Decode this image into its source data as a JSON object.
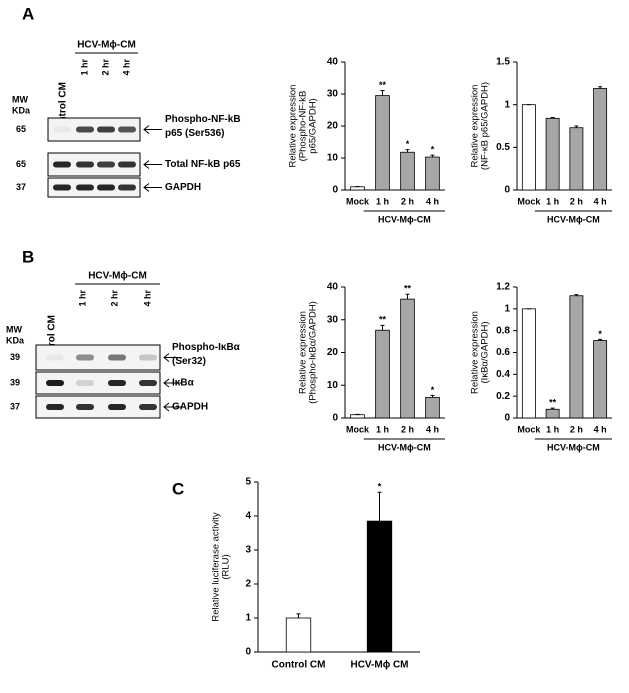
{
  "panel_labels": [
    "A",
    "B",
    "C"
  ],
  "blots": [
    {
      "lane_header": "Control CM",
      "group_label": "HCV-Mϕ-CM",
      "lanes": [
        "1 hr",
        "2 hr",
        "4 hr"
      ],
      "mw_header": [
        "MW",
        "KDa"
      ],
      "rows": [
        {
          "mw": "65",
          "label": [
            "Phospho-NF-kB",
            "p65 (Ser536)"
          ]
        },
        {
          "mw": "65",
          "label": [
            "Total NF-kB p65"
          ]
        },
        {
          "mw": "37",
          "label": [
            "GAPDH"
          ]
        }
      ]
    },
    {
      "lane_header": "Control CM",
      "group_label": "HCV-Mϕ-CM",
      "lanes": [
        "1 hr",
        "2 hr",
        "4 hr"
      ],
      "mw_header": [
        "MW",
        "KDa"
      ],
      "rows": [
        {
          "mw": "39",
          "label": [
            "Phospho-IκBα",
            "(Ser32)"
          ]
        },
        {
          "mw": "39",
          "label": [
            "IκBα"
          ]
        },
        {
          "mw": "37",
          "label": [
            "GAPDH"
          ]
        }
      ]
    }
  ],
  "chart_data": [
    {
      "type": "bar",
      "ylabel": [
        "Relative expression",
        "(Phospho-NF-kB",
        "p65/GAPDH)"
      ],
      "categories": [
        "Mock",
        "1 h",
        "2 h",
        "4 h"
      ],
      "group_label": "HCV-Mϕ-CM",
      "values": [
        1,
        29.5,
        11.8,
        10.3
      ],
      "errors": [
        0.1,
        1.6,
        0.8,
        0.6
      ],
      "significance": [
        null,
        "**",
        "*",
        "*"
      ],
      "colors": [
        "#ffffff",
        "#a6a6a6",
        "#a6a6a6",
        "#a6a6a6"
      ],
      "ylim": [
        0,
        40
      ],
      "yticks": [
        0,
        10,
        20,
        30,
        40
      ]
    },
    {
      "type": "bar",
      "ylabel": [
        "Relative expression",
        "(NF-κB p65/GAPDH)"
      ],
      "categories": [
        "Mock",
        "1 h",
        "2 h",
        "4 h"
      ],
      "group_label": "HCV-Mϕ-CM",
      "values": [
        1,
        0.84,
        0.73,
        1.19
      ],
      "errors": [
        0,
        0.01,
        0.02,
        0.02
      ],
      "significance": [
        null,
        null,
        null,
        null
      ],
      "colors": [
        "#ffffff",
        "#a6a6a6",
        "#a6a6a6",
        "#a6a6a6"
      ],
      "ylim": [
        0,
        1.5
      ],
      "yticks": [
        0,
        0.5,
        1,
        1.5
      ]
    },
    {
      "type": "bar",
      "ylabel": [
        "Relative expression",
        "(Phospho-IκBα/GAPDH)"
      ],
      "categories": [
        "Mock",
        "1 h",
        "2 h",
        "4 h"
      ],
      "group_label": "HCV-Mϕ-CM",
      "values": [
        1,
        26.8,
        36.3,
        6.3
      ],
      "errors": [
        0.1,
        1.5,
        1.5,
        0.6
      ],
      "significance": [
        null,
        "**",
        "**",
        "*"
      ],
      "colors": [
        "#ffffff",
        "#a6a6a6",
        "#a6a6a6",
        "#a6a6a6"
      ],
      "ylim": [
        0,
        40
      ],
      "yticks": [
        0,
        10,
        20,
        30,
        40
      ]
    },
    {
      "type": "bar",
      "ylabel": [
        "Relative expression",
        "(IκBα/GAPDH)"
      ],
      "categories": [
        "Mock",
        "1 h",
        "2 h",
        "4 h"
      ],
      "group_label": "HCV-Mϕ-CM",
      "values": [
        1,
        0.08,
        1.12,
        0.71
      ],
      "errors": [
        0,
        0.01,
        0.01,
        0.01
      ],
      "significance": [
        null,
        "**",
        null,
        "*"
      ],
      "colors": [
        "#ffffff",
        "#a6a6a6",
        "#a6a6a6",
        "#a6a6a6"
      ],
      "ylim": [
        0,
        1.2
      ],
      "yticks": [
        0,
        0.2,
        0.4,
        0.6,
        0.8,
        1,
        1.2
      ]
    },
    {
      "type": "bar",
      "ylabel": [
        "Relative luciferase activity",
        "(RLU)"
      ],
      "categories": [
        "Control CM",
        "HCV-Mϕ CM"
      ],
      "values": [
        1,
        3.85
      ],
      "errors": [
        0.12,
        0.85
      ],
      "significance": [
        null,
        "*"
      ],
      "colors": [
        "#ffffff",
        "#000000"
      ],
      "ylim": [
        0,
        5
      ],
      "yticks": [
        0,
        1,
        2,
        3,
        4,
        5
      ]
    }
  ]
}
